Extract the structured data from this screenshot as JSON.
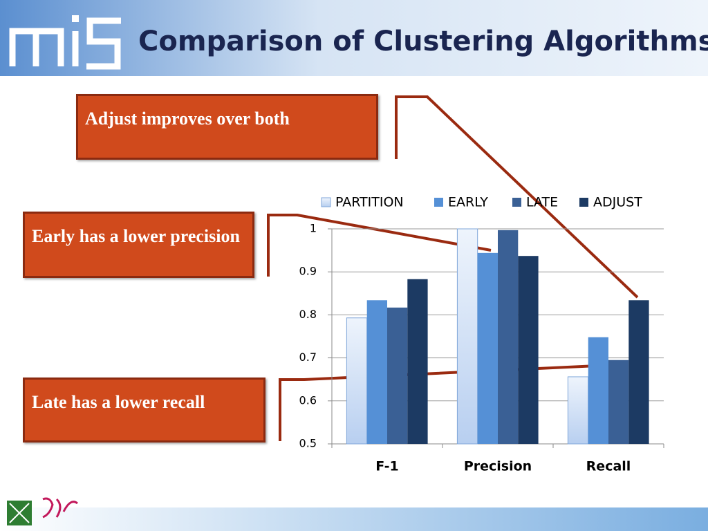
{
  "slide_title": "Comparison of Clustering Algorithms",
  "callouts": [
    "Adjust improves over both",
    "Early has a lower precision",
    "Late has a lower recall"
  ],
  "chart_data": {
    "type": "bar",
    "categories": [
      "F-1",
      "Precision",
      "Recall"
    ],
    "series": [
      {
        "name": "PARTITION",
        "color": "#dce8f8",
        "values": [
          0.793,
          1.0,
          0.656
        ]
      },
      {
        "name": "EARLY",
        "color": "#5590d6",
        "values": [
          0.834,
          0.944,
          0.748
        ]
      },
      {
        "name": "LATE",
        "color": "#3a6095",
        "values": [
          0.817,
          0.997,
          0.695
        ]
      },
      {
        "name": "ADJUST",
        "color": "#1c3a63",
        "values": [
          0.883,
          0.937,
          0.834
        ]
      }
    ],
    "ylim": [
      0.5,
      1
    ],
    "yticks": [
      0.5,
      0.6,
      0.7,
      0.8,
      0.9,
      1
    ],
    "grid": true,
    "legend": "top"
  }
}
